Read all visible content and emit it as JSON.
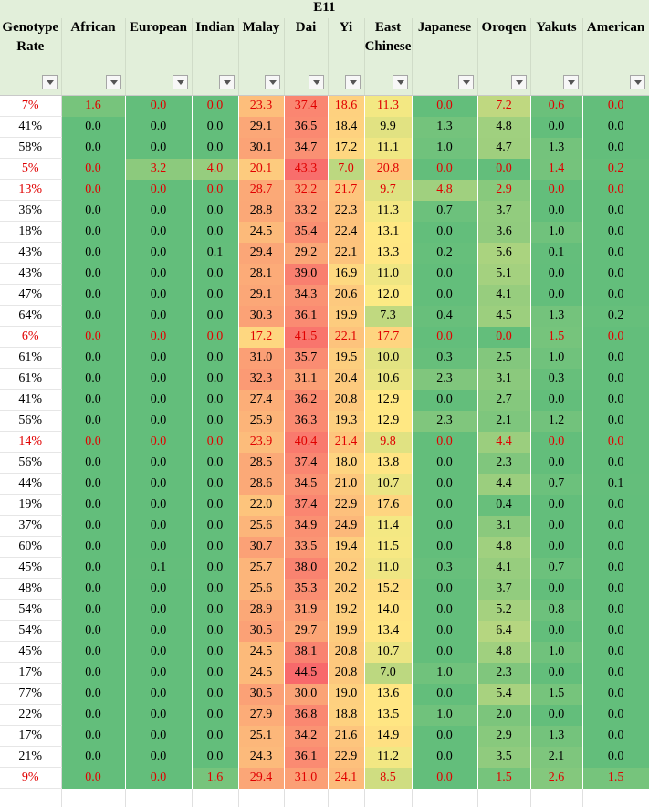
{
  "sheet": {
    "group_title": "E11",
    "columns": [
      {
        "key": "rate",
        "label": "Genotype Rate"
      },
      {
        "key": "african",
        "label": "African"
      },
      {
        "key": "european",
        "label": "European"
      },
      {
        "key": "indian",
        "label": "Indian"
      },
      {
        "key": "malay",
        "label": "Malay"
      },
      {
        "key": "dai",
        "label": "Dai"
      },
      {
        "key": "yi",
        "label": "Yi"
      },
      {
        "key": "east_chinese",
        "label": "East Chinese"
      },
      {
        "key": "japanese",
        "label": "Japanese"
      },
      {
        "key": "oroqen",
        "label": "Oroqen"
      },
      {
        "key": "yakuts",
        "label": "Yakuts"
      },
      {
        "key": "american",
        "label": "American"
      }
    ],
    "filter_icon": "chevron-down-icon",
    "color_scale": {
      "low": "#63be7b",
      "mid": "#ffeb84",
      "high": "#f8696b"
    },
    "highlight_text_color": "#e00000",
    "rows": [
      {
        "rate": "7%",
        "red": true,
        "v": [
          "1.6",
          "0.0",
          "0.0",
          "23.3",
          "37.4",
          "18.6",
          "11.3",
          "0.0",
          "7.2",
          "0.6",
          "0.0"
        ]
      },
      {
        "rate": "41%",
        "red": false,
        "v": [
          "0.0",
          "0.0",
          "0.0",
          "29.1",
          "36.5",
          "18.4",
          "9.9",
          "1.3",
          "4.8",
          "0.0",
          "0.0"
        ]
      },
      {
        "rate": "58%",
        "red": false,
        "v": [
          "0.0",
          "0.0",
          "0.0",
          "30.1",
          "34.7",
          "17.2",
          "11.1",
          "1.0",
          "4.7",
          "1.3",
          "0.0"
        ]
      },
      {
        "rate": "5%",
        "red": true,
        "v": [
          "0.0",
          "3.2",
          "4.0",
          "20.1",
          "43.3",
          "7.0",
          "20.8",
          "0.0",
          "0.0",
          "1.4",
          "0.2"
        ]
      },
      {
        "rate": "13%",
        "red": true,
        "v": [
          "0.0",
          "0.0",
          "0.0",
          "28.7",
          "32.2",
          "21.7",
          "9.7",
          "4.8",
          "2.9",
          "0.0",
          "0.0"
        ]
      },
      {
        "rate": "36%",
        "red": false,
        "v": [
          "0.0",
          "0.0",
          "0.0",
          "28.8",
          "33.2",
          "22.3",
          "11.3",
          "0.7",
          "3.7",
          "0.0",
          "0.0"
        ]
      },
      {
        "rate": "18%",
        "red": false,
        "v": [
          "0.0",
          "0.0",
          "0.0",
          "24.5",
          "35.4",
          "22.4",
          "13.1",
          "0.0",
          "3.6",
          "1.0",
          "0.0"
        ]
      },
      {
        "rate": "43%",
        "red": false,
        "v": [
          "0.0",
          "0.0",
          "0.1",
          "29.4",
          "29.2",
          "22.1",
          "13.3",
          "0.2",
          "5.6",
          "0.1",
          "0.0"
        ]
      },
      {
        "rate": "43%",
        "red": false,
        "v": [
          "0.0",
          "0.0",
          "0.0",
          "28.1",
          "39.0",
          "16.9",
          "11.0",
          "0.0",
          "5.1",
          "0.0",
          "0.0"
        ]
      },
      {
        "rate": "47%",
        "red": false,
        "v": [
          "0.0",
          "0.0",
          "0.0",
          "29.1",
          "34.3",
          "20.6",
          "12.0",
          "0.0",
          "4.1",
          "0.0",
          "0.0"
        ]
      },
      {
        "rate": "64%",
        "red": false,
        "v": [
          "0.0",
          "0.0",
          "0.0",
          "30.3",
          "36.1",
          "19.9",
          "7.3",
          "0.4",
          "4.5",
          "1.3",
          "0.2"
        ]
      },
      {
        "rate": "6%",
        "red": true,
        "v": [
          "0.0",
          "0.0",
          "0.0",
          "17.2",
          "41.5",
          "22.1",
          "17.7",
          "0.0",
          "0.0",
          "1.5",
          "0.0"
        ]
      },
      {
        "rate": "61%",
        "red": false,
        "v": [
          "0.0",
          "0.0",
          "0.0",
          "31.0",
          "35.7",
          "19.5",
          "10.0",
          "0.3",
          "2.5",
          "1.0",
          "0.0"
        ]
      },
      {
        "rate": "61%",
        "red": false,
        "v": [
          "0.0",
          "0.0",
          "0.0",
          "32.3",
          "31.1",
          "20.4",
          "10.6",
          "2.3",
          "3.1",
          "0.3",
          "0.0"
        ]
      },
      {
        "rate": "41%",
        "red": false,
        "v": [
          "0.0",
          "0.0",
          "0.0",
          "27.4",
          "36.2",
          "20.8",
          "12.9",
          "0.0",
          "2.7",
          "0.0",
          "0.0"
        ]
      },
      {
        "rate": "56%",
        "red": false,
        "v": [
          "0.0",
          "0.0",
          "0.0",
          "25.9",
          "36.3",
          "19.3",
          "12.9",
          "2.3",
          "2.1",
          "1.2",
          "0.0"
        ]
      },
      {
        "rate": "14%",
        "red": true,
        "v": [
          "0.0",
          "0.0",
          "0.0",
          "23.9",
          "40.4",
          "21.4",
          "9.8",
          "0.0",
          "4.4",
          "0.0",
          "0.0"
        ]
      },
      {
        "rate": "56%",
        "red": false,
        "v": [
          "0.0",
          "0.0",
          "0.0",
          "28.5",
          "37.4",
          "18.0",
          "13.8",
          "0.0",
          "2.3",
          "0.0",
          "0.0"
        ]
      },
      {
        "rate": "44%",
        "red": false,
        "v": [
          "0.0",
          "0.0",
          "0.0",
          "28.6",
          "34.5",
          "21.0",
          "10.7",
          "0.0",
          "4.4",
          "0.7",
          "0.1"
        ]
      },
      {
        "rate": "19%",
        "red": false,
        "v": [
          "0.0",
          "0.0",
          "0.0",
          "22.0",
          "37.4",
          "22.9",
          "17.6",
          "0.0",
          "0.4",
          "0.0",
          "0.0"
        ]
      },
      {
        "rate": "37%",
        "red": false,
        "v": [
          "0.0",
          "0.0",
          "0.0",
          "25.6",
          "34.9",
          "24.9",
          "11.4",
          "0.0",
          "3.1",
          "0.0",
          "0.0"
        ]
      },
      {
        "rate": "60%",
        "red": false,
        "v": [
          "0.0",
          "0.0",
          "0.0",
          "30.7",
          "33.5",
          "19.4",
          "11.5",
          "0.0",
          "4.8",
          "0.0",
          "0.0"
        ]
      },
      {
        "rate": "45%",
        "red": false,
        "v": [
          "0.0",
          "0.1",
          "0.0",
          "25.7",
          "38.0",
          "20.2",
          "11.0",
          "0.3",
          "4.1",
          "0.7",
          "0.0"
        ]
      },
      {
        "rate": "48%",
        "red": false,
        "v": [
          "0.0",
          "0.0",
          "0.0",
          "25.6",
          "35.3",
          "20.2",
          "15.2",
          "0.0",
          "3.7",
          "0.0",
          "0.0"
        ]
      },
      {
        "rate": "54%",
        "red": false,
        "v": [
          "0.0",
          "0.0",
          "0.0",
          "28.9",
          "31.9",
          "19.2",
          "14.0",
          "0.0",
          "5.2",
          "0.8",
          "0.0"
        ]
      },
      {
        "rate": "54%",
        "red": false,
        "v": [
          "0.0",
          "0.0",
          "0.0",
          "30.5",
          "29.7",
          "19.9",
          "13.4",
          "0.0",
          "6.4",
          "0.0",
          "0.0"
        ]
      },
      {
        "rate": "45%",
        "red": false,
        "v": [
          "0.0",
          "0.0",
          "0.0",
          "24.5",
          "38.1",
          "20.8",
          "10.7",
          "0.0",
          "4.8",
          "1.0",
          "0.0"
        ]
      },
      {
        "rate": "17%",
        "red": false,
        "v": [
          "0.0",
          "0.0",
          "0.0",
          "24.5",
          "44.5",
          "20.8",
          "7.0",
          "1.0",
          "2.3",
          "0.0",
          "0.0"
        ]
      },
      {
        "rate": "77%",
        "red": false,
        "v": [
          "0.0",
          "0.0",
          "0.0",
          "30.5",
          "30.0",
          "19.0",
          "13.6",
          "0.0",
          "5.4",
          "1.5",
          "0.0"
        ]
      },
      {
        "rate": "22%",
        "red": false,
        "v": [
          "0.0",
          "0.0",
          "0.0",
          "27.9",
          "36.8",
          "18.8",
          "13.5",
          "1.0",
          "2.0",
          "0.0",
          "0.0"
        ]
      },
      {
        "rate": "17%",
        "red": false,
        "v": [
          "0.0",
          "0.0",
          "0.0",
          "25.1",
          "34.2",
          "21.6",
          "14.9",
          "0.0",
          "2.9",
          "1.3",
          "0.0"
        ]
      },
      {
        "rate": "21%",
        "red": false,
        "v": [
          "0.0",
          "0.0",
          "0.0",
          "24.3",
          "36.1",
          "22.9",
          "11.2",
          "0.0",
          "3.5",
          "2.1",
          "0.0"
        ]
      },
      {
        "rate": "9%",
        "red": true,
        "v": [
          "0.0",
          "0.0",
          "1.6",
          "29.4",
          "31.0",
          "24.1",
          "8.5",
          "0.0",
          "1.5",
          "2.6",
          "1.5"
        ]
      }
    ]
  }
}
